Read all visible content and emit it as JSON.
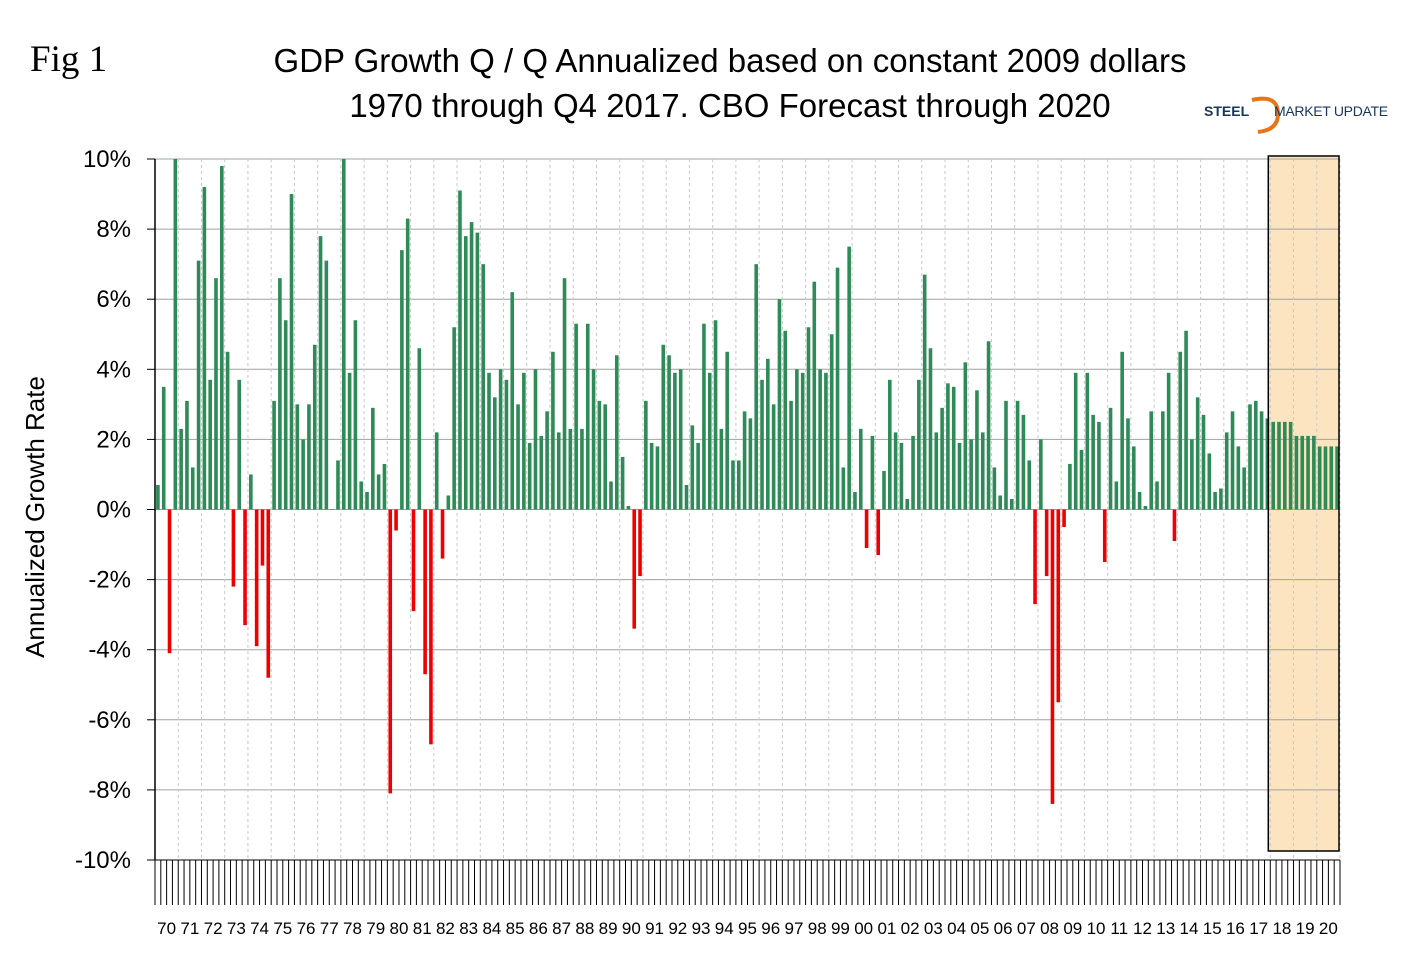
{
  "figure_label": "Fig 1",
  "logo": {
    "brand_bold": "STEEL",
    "brand_rest": "MARKET UPDATE",
    "accent": "#e8751a",
    "text_color": "#17365d"
  },
  "colors": {
    "positive": "#2e8b57",
    "negative": "#ee0000",
    "forecast_region": "#fce4c0",
    "gridline": "#a0a0a0"
  },
  "chart_data": {
    "type": "bar",
    "title": "GDP Growth Q / Q Annualized based on constant 2009 dollars",
    "subtitle": "1970 through Q4 2017. CBO Forecast through 2020",
    "xlabel": "",
    "ylabel": "Annualized Growth Rate",
    "ylim": [
      -10,
      10
    ],
    "y_ticks": [
      10,
      8,
      6,
      4,
      2,
      0,
      -2,
      -4,
      -6,
      -8,
      -10
    ],
    "y_tick_labels": [
      "10%",
      "8%",
      "6%",
      "4%",
      "2%",
      "0%",
      "-2%",
      "-4%",
      "-6%",
      "-8%",
      "-10%"
    ],
    "grid": true,
    "legend": "none",
    "period": "quarterly",
    "year_labels": [
      "70",
      "71",
      "72",
      "73",
      "74",
      "75",
      "76",
      "77",
      "78",
      "79",
      "80",
      "81",
      "82",
      "83",
      "84",
      "85",
      "86",
      "87",
      "88",
      "89",
      "90",
      "91",
      "92",
      "93",
      "94",
      "95",
      "96",
      "97",
      "98",
      "99",
      "00",
      "01",
      "02",
      "03",
      "04",
      "05",
      "06",
      "07",
      "08",
      "09",
      "10",
      "11",
      "12",
      "13",
      "14",
      "15",
      "16",
      "17",
      "18",
      "19",
      "20"
    ],
    "forecast_start_year": "18",
    "values": [
      0.7,
      3.5,
      -4.1,
      10.0,
      2.3,
      3.1,
      1.2,
      7.1,
      9.2,
      3.7,
      6.6,
      9.8,
      4.5,
      -2.2,
      3.7,
      -3.3,
      1.0,
      -3.9,
      -1.6,
      -4.8,
      3.1,
      6.6,
      5.4,
      9.0,
      3.0,
      2.0,
      3.0,
      4.7,
      7.8,
      7.1,
      0.0,
      1.4,
      10.0,
      3.9,
      5.4,
      0.8,
      0.5,
      2.9,
      1.0,
      1.3,
      -8.1,
      -0.6,
      7.4,
      8.3,
      -2.9,
      4.6,
      -4.7,
      -6.7,
      2.2,
      -1.4,
      0.4,
      5.2,
      9.1,
      7.8,
      8.2,
      7.9,
      7.0,
      3.9,
      3.2,
      4.0,
      3.7,
      6.2,
      3.0,
      3.9,
      1.9,
      4.0,
      2.1,
      2.8,
      4.5,
      2.2,
      6.6,
      2.3,
      5.3,
      2.3,
      5.3,
      4.0,
      3.1,
      3.0,
      0.8,
      4.4,
      1.5,
      0.1,
      -3.4,
      -1.9,
      3.1,
      1.9,
      1.8,
      4.7,
      4.4,
      3.9,
      4.0,
      0.7,
      2.4,
      1.9,
      5.3,
      3.9,
      5.4,
      2.3,
      4.5,
      1.4,
      1.4,
      2.8,
      2.6,
      7.0,
      3.7,
      4.3,
      3.0,
      6.0,
      5.1,
      3.1,
      4.0,
      3.9,
      5.2,
      6.5,
      4.0,
      3.9,
      5.0,
      6.9,
      1.2,
      7.5,
      0.5,
      2.3,
      -1.1,
      2.1,
      -1.3,
      1.1,
      3.7,
      2.2,
      1.9,
      0.3,
      2.1,
      3.7,
      6.7,
      4.6,
      2.2,
      2.9,
      3.6,
      3.5,
      1.9,
      4.2,
      2.0,
      3.4,
      2.2,
      4.8,
      1.2,
      0.4,
      3.1,
      0.3,
      3.1,
      2.7,
      1.4,
      -2.7,
      2.0,
      -1.9,
      -8.4,
      -5.5,
      -0.5,
      1.3,
      3.9,
      1.7,
      3.9,
      2.7,
      2.5,
      -1.5,
      2.9,
      0.8,
      4.5,
      2.6,
      1.8,
      0.5,
      0.1,
      2.8,
      0.8,
      2.8,
      3.9,
      -0.9,
      4.5,
      5.1,
      2.0,
      3.2,
      2.7,
      1.6,
      0.5,
      0.6,
      2.2,
      2.8,
      1.8,
      1.2,
      3.0,
      3.1,
      2.8,
      2.6,
      2.5,
      2.5,
      2.5,
      2.5,
      2.1,
      2.1,
      2.1,
      2.1,
      1.8,
      1.8,
      1.8,
      1.8
    ]
  }
}
